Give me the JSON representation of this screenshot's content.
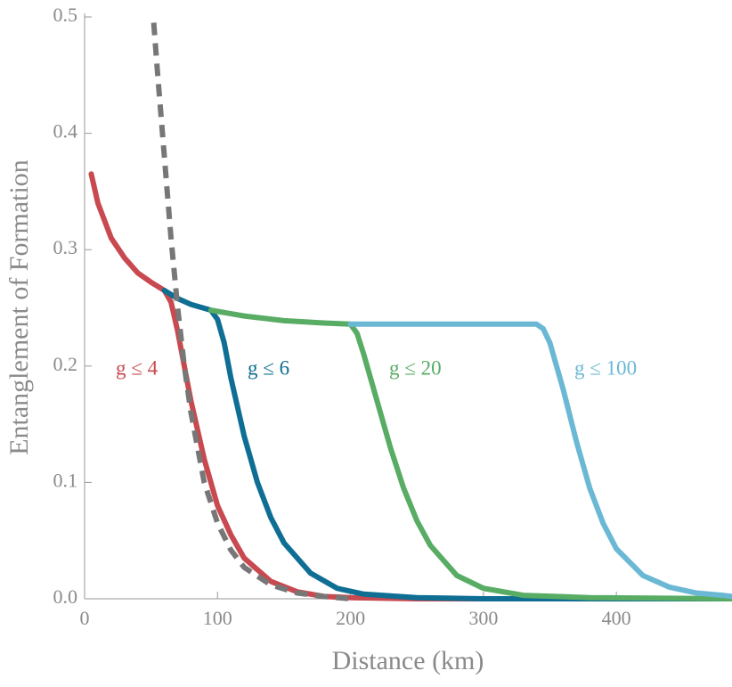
{
  "chart_data": {
    "type": "line",
    "x_label": "Distance (km)",
    "y_label": "Entanglement of Formation",
    "xlim": [
      0,
      487
    ],
    "ylim": [
      0,
      0.5
    ],
    "xticks": [
      0,
      100,
      200,
      300,
      400
    ],
    "yticks": [
      {
        "value": 0,
        "label": "0.0"
      },
      0.1,
      0.2,
      0.3,
      0.4,
      0.5
    ],
    "series": [
      {
        "name": "g ≤ 4",
        "color": "#c8494f",
        "x": [
          5,
          10,
          20,
          30,
          40,
          50,
          60,
          65,
          70,
          75,
          80,
          90,
          100,
          110,
          120,
          140,
          160,
          180,
          200,
          250,
          487
        ],
        "values": [
          0.365,
          0.34,
          0.31,
          0.293,
          0.28,
          0.272,
          0.265,
          0.255,
          0.23,
          0.2,
          0.17,
          0.12,
          0.08,
          0.055,
          0.035,
          0.015,
          0.006,
          0.002,
          0.001,
          0,
          0
        ]
      },
      {
        "name": "g ≤ 6",
        "color": "#0f6e93",
        "x": [
          60,
          70,
          80,
          95,
          100,
          105,
          110,
          120,
          130,
          140,
          150,
          170,
          190,
          210,
          250,
          300,
          487
        ],
        "values": [
          0.265,
          0.258,
          0.253,
          0.248,
          0.24,
          0.22,
          0.19,
          0.14,
          0.1,
          0.07,
          0.048,
          0.022,
          0.009,
          0.004,
          0.001,
          0,
          0
        ]
      },
      {
        "name": "g ≤ 20",
        "color": "#58ac64",
        "x": [
          95,
          120,
          150,
          180,
          200,
          205,
          210,
          220,
          230,
          240,
          250,
          260,
          280,
          300,
          330,
          380,
          487
        ],
        "values": [
          0.248,
          0.243,
          0.239,
          0.237,
          0.236,
          0.228,
          0.21,
          0.17,
          0.13,
          0.095,
          0.067,
          0.046,
          0.02,
          0.009,
          0.003,
          0.001,
          0
        ]
      },
      {
        "name": "g ≤ 100",
        "color": "#6bb8d4",
        "x": [
          200,
          300,
          340,
          345,
          350,
          360,
          370,
          380,
          390,
          400,
          420,
          440,
          460,
          480,
          487
        ],
        "values": [
          0.236,
          0.236,
          0.236,
          0.232,
          0.22,
          0.18,
          0.135,
          0.095,
          0.065,
          0.043,
          0.02,
          0.01,
          0.005,
          0.003,
          0.002
        ]
      },
      {
        "color": "#777777",
        "dashed": true,
        "x": [
          52,
          55,
          60,
          65,
          70,
          75,
          80,
          90,
          100,
          110,
          120,
          140,
          160,
          180,
          200
        ],
        "values": [
          0.495,
          0.45,
          0.38,
          0.31,
          0.25,
          0.2,
          0.16,
          0.1,
          0.065,
          0.042,
          0.027,
          0.012,
          0.005,
          0.002,
          0
        ]
      }
    ]
  }
}
